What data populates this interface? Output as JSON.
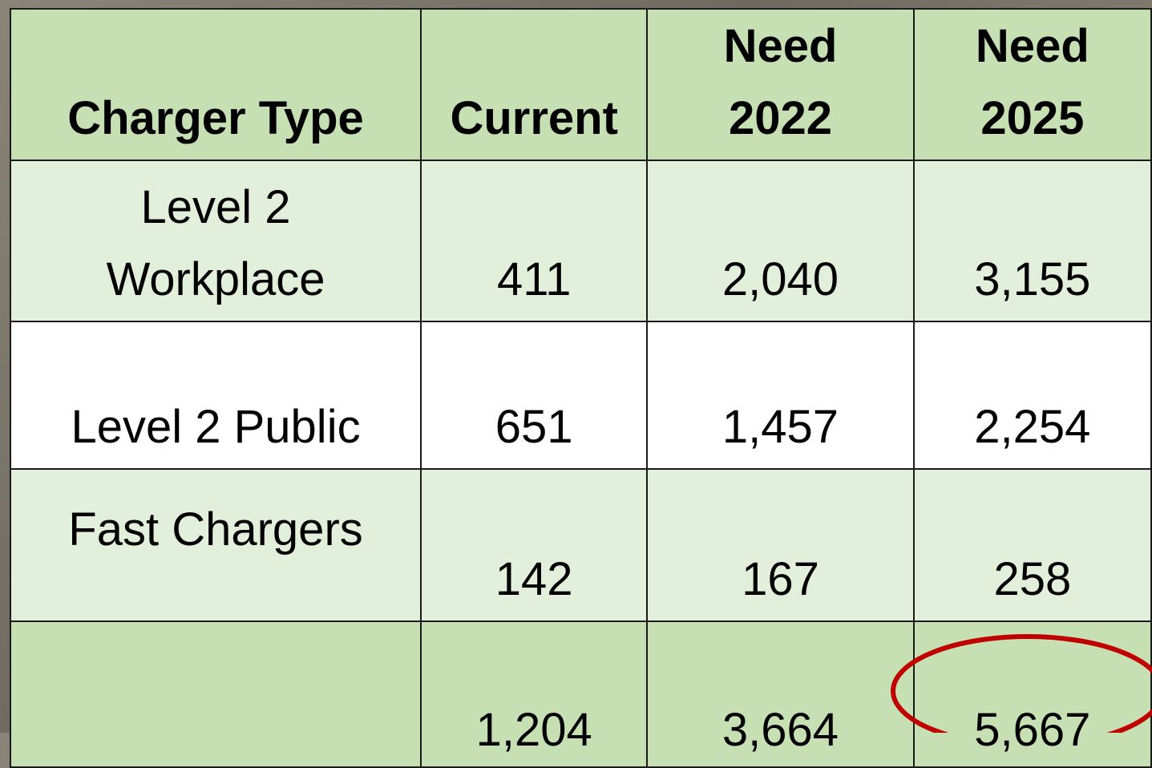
{
  "table": {
    "header": [
      "Charger Type",
      "Current",
      "Need 2022",
      "Need 2025"
    ],
    "rows": [
      [
        "Level 2 Workplace",
        "411",
        "2,040",
        "3,155"
      ],
      [
        "Level 2 Public",
        "651",
        "1,457",
        "2,254"
      ],
      [
        "Fast Chargers",
        "142",
        "167",
        "258"
      ]
    ],
    "total": [
      "1,204",
      "3,664",
      "5,667"
    ]
  }
}
